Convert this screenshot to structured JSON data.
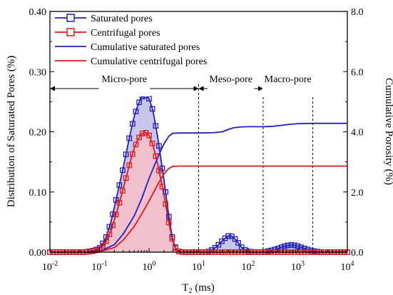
{
  "chart_data": {
    "type": "line",
    "xlabel": "T2 (ms)",
    "ylabel_left": "Distribution of Saturated Pores (%)",
    "ylabel_right": "Cumulative Porosity (%)",
    "x_scale": "log",
    "xlim": [
      0.01,
      10000
    ],
    "ylim_left": [
      0,
      0.4
    ],
    "ylim_right": [
      0,
      8.0
    ],
    "x_tick_labels": [
      "10-2",
      "10-1",
      "100",
      "101",
      "102",
      "103",
      "104"
    ],
    "y_left_ticks": [
      "0.00",
      "0.10",
      "0.20",
      "0.30",
      "0.40"
    ],
    "y_right_ticks": [
      "0.0",
      "2.0",
      "4.0",
      "6.0",
      "8.0"
    ],
    "grid": false,
    "legend_position": "top-left",
    "region_boundaries_ms": [
      10,
      200,
      2000
    ],
    "regions": [
      {
        "label": "Micro-pore",
        "from": 0.01,
        "to": 10
      },
      {
        "label": "Meso-pore",
        "from": 10,
        "to": 200
      },
      {
        "label": "Macro-pore",
        "from": 200,
        "to": 2000
      }
    ],
    "series": [
      {
        "name": "Saturated pores",
        "axis": "left",
        "color": "#1f1fbf",
        "marker": "square",
        "fill": "#c9c6ec",
        "x": [
          0.01,
          0.05,
          0.08,
          0.1,
          0.13,
          0.17,
          0.22,
          0.3,
          0.4,
          0.5,
          0.6,
          0.7,
          0.8,
          0.9,
          1.0,
          1.2,
          1.5,
          2.0,
          2.5,
          3.0,
          3.5,
          4.0,
          5.0,
          7.0,
          10,
          15,
          20,
          25,
          30,
          35,
          40,
          45,
          50,
          60,
          70,
          80,
          100,
          150,
          200,
          300,
          400,
          500,
          600,
          700,
          800,
          1000,
          1500,
          2000,
          3000,
          5000,
          10000
        ],
        "values": [
          0.0,
          0.0,
          0.003,
          0.007,
          0.02,
          0.05,
          0.09,
          0.14,
          0.19,
          0.225,
          0.245,
          0.257,
          0.261,
          0.26,
          0.255,
          0.235,
          0.19,
          0.12,
          0.06,
          0.02,
          0.006,
          0.001,
          0.0,
          0.0,
          0.0,
          0.0,
          0.005,
          0.012,
          0.019,
          0.024,
          0.027,
          0.027,
          0.025,
          0.018,
          0.01,
          0.005,
          0.001,
          0.0,
          0.0,
          0.003,
          0.006,
          0.009,
          0.011,
          0.012,
          0.012,
          0.01,
          0.005,
          0.002,
          0.0,
          0.0,
          0.0
        ]
      },
      {
        "name": "Centrifugal pores",
        "axis": "left",
        "color": "#e01818",
        "marker": "square",
        "fill": "#f0c0cc",
        "x": [
          0.01,
          0.05,
          0.08,
          0.1,
          0.13,
          0.17,
          0.22,
          0.3,
          0.4,
          0.5,
          0.6,
          0.7,
          0.8,
          0.9,
          1.0,
          1.2,
          1.5,
          2.0,
          2.5,
          3.0,
          3.5,
          4.0,
          5.0,
          10,
          100,
          1000,
          10000
        ],
        "values": [
          0.0,
          0.0,
          0.002,
          0.005,
          0.015,
          0.035,
          0.065,
          0.105,
          0.145,
          0.172,
          0.188,
          0.196,
          0.199,
          0.198,
          0.194,
          0.178,
          0.145,
          0.095,
          0.05,
          0.018,
          0.005,
          0.001,
          0.0,
          0.0,
          0.0,
          0.0,
          0.0
        ]
      },
      {
        "name": "Cumulative saturated pores",
        "axis": "right",
        "color": "#1f1fbf",
        "x": [
          0.01,
          0.05,
          0.1,
          0.2,
          0.3,
          0.5,
          0.7,
          1.0,
          1.5,
          2.0,
          2.5,
          3.0,
          4.0,
          5.0,
          10,
          20,
          30,
          40,
          50,
          70,
          100,
          150,
          200,
          300,
          500,
          700,
          1000,
          2000,
          5000,
          10000
        ],
        "values": [
          0.0,
          0.0,
          0.02,
          0.25,
          0.6,
          1.2,
          1.75,
          2.45,
          3.15,
          3.6,
          3.85,
          3.95,
          3.96,
          3.96,
          3.96,
          3.97,
          4.0,
          4.08,
          4.13,
          4.16,
          4.17,
          4.17,
          4.17,
          4.18,
          4.22,
          4.25,
          4.27,
          4.28,
          4.28,
          4.28
        ]
      },
      {
        "name": "Cumulative centrifugal pores",
        "axis": "right",
        "color": "#e01818",
        "x": [
          0.01,
          0.05,
          0.1,
          0.2,
          0.3,
          0.5,
          0.7,
          1.0,
          1.5,
          2.0,
          2.5,
          3.0,
          4.0,
          5.0,
          10,
          100,
          1000,
          10000
        ],
        "values": [
          0.0,
          0.0,
          0.015,
          0.15,
          0.4,
          0.85,
          1.25,
          1.7,
          2.25,
          2.6,
          2.78,
          2.85,
          2.86,
          2.86,
          2.86,
          2.86,
          2.86,
          2.86
        ]
      }
    ]
  }
}
